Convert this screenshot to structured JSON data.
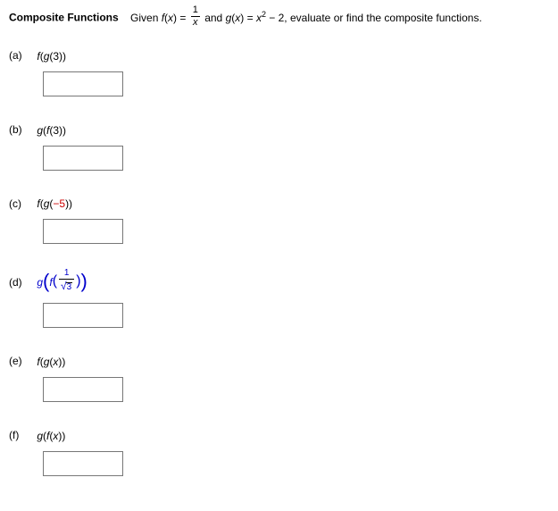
{
  "header": {
    "title": "Composite Functions",
    "given_prefix": "Given ",
    "f_name": "f",
    "var": "x",
    "eq": " = ",
    "frac_num": "1",
    "frac_den": "x",
    "and_text": " and ",
    "g_name": "g",
    "g_rhs_base": "x",
    "g_rhs_exp": "2",
    "g_rhs_tail": " − 2, ",
    "tail": "evaluate or find the composite functions."
  },
  "problems": {
    "a": {
      "label": "(a)",
      "expr_html": "<span class='italic'>f</span>(<span class='italic'>g</span>(3))"
    },
    "b": {
      "label": "(b)",
      "expr_html": "<span class='italic'>g</span>(<span class='italic'>f</span>(3))"
    },
    "c": {
      "label": "(c)",
      "expr_html": "<span class='italic'>f</span>(<span class='italic'>g</span>(<span class='minus'>−5</span>))"
    },
    "d": {
      "label": "(d)",
      "expr_html": "<span class='blue d-expr'><span class='italic'>g</span><span class='big-paren'>(</span><span class='italic'>f</span><span class='mid-paren'>(</span><span class='frac'><span class='num'>1</span><span class='den'><span class='sqrt'><span class='rad'>3</span></span></span></span><span class='mid-paren'>)</span><span class='big-paren'>)</span></span>"
    },
    "e": {
      "label": "(e)",
      "expr_html": "<span class='italic'>f</span>(<span class='italic'>g</span>(<span class='italic'>x</span>))"
    },
    "f": {
      "label": "(f)",
      "expr_html": "<span class='italic'>g</span>(<span class='italic'>f</span>(<span class='italic'>x</span>))"
    }
  }
}
